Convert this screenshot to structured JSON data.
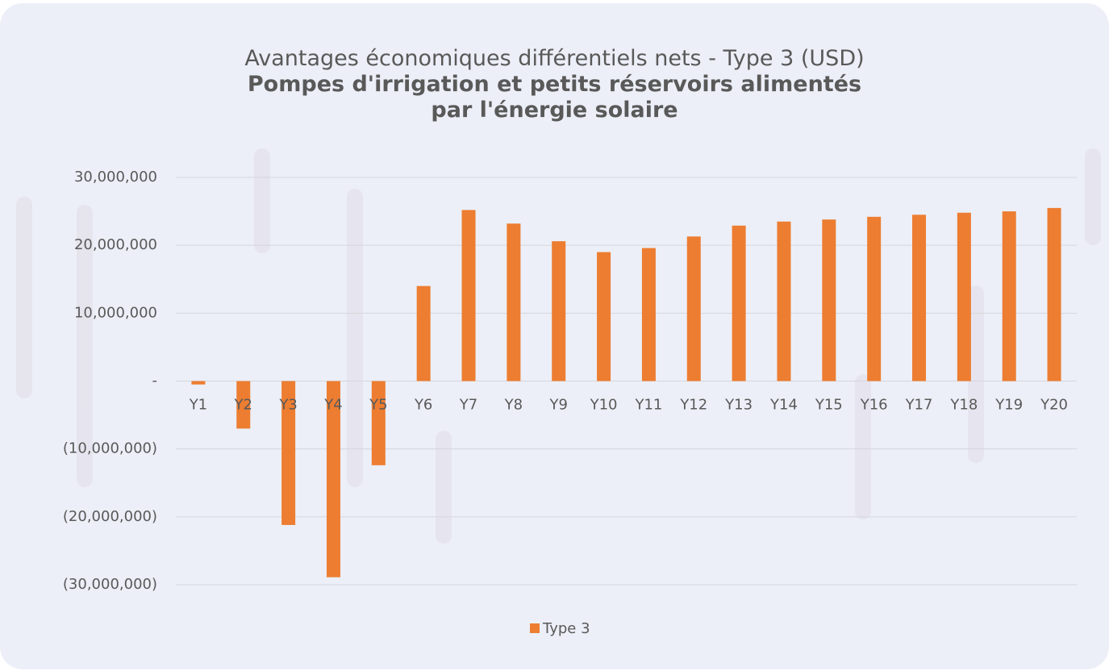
{
  "chart_data": {
    "type": "bar",
    "title": "Avantages économiques différentiels nets - Type 3 (USD)",
    "subtitle": "Pompes d'irrigation et petits réservoirs alimentés par l'énergie solaire",
    "categories": [
      "Y1",
      "Y2",
      "Y3",
      "Y4",
      "Y5",
      "Y6",
      "Y7",
      "Y8",
      "Y9",
      "Y10",
      "Y11",
      "Y12",
      "Y13",
      "Y14",
      "Y15",
      "Y16",
      "Y17",
      "Y18",
      "Y19",
      "Y20"
    ],
    "series": [
      {
        "name": "Type 3",
        "color": "#ed7d31",
        "values": [
          -500000,
          -7000000,
          -21200000,
          -28900000,
          -12400000,
          14000000,
          25200000,
          23200000,
          20600000,
          19000000,
          19600000,
          21300000,
          22900000,
          23500000,
          23800000,
          24200000,
          24500000,
          24800000,
          25000000,
          25500000
        ]
      }
    ],
    "ylim": [
      -30000000,
      30000000
    ],
    "yticks": [
      {
        "value": -30000000,
        "label": "(30,000,000)"
      },
      {
        "value": -20000000,
        "label": "(20,000,000)"
      },
      {
        "value": -10000000,
        "label": "(10,000,000)"
      },
      {
        "value": 0,
        "label": "-"
      },
      {
        "value": 10000000,
        "label": "10,000,000"
      },
      {
        "value": 20000000,
        "label": "20,000,000"
      },
      {
        "value": 30000000,
        "label": "30,000,000"
      }
    ],
    "grid": true,
    "legend": "bottom"
  }
}
